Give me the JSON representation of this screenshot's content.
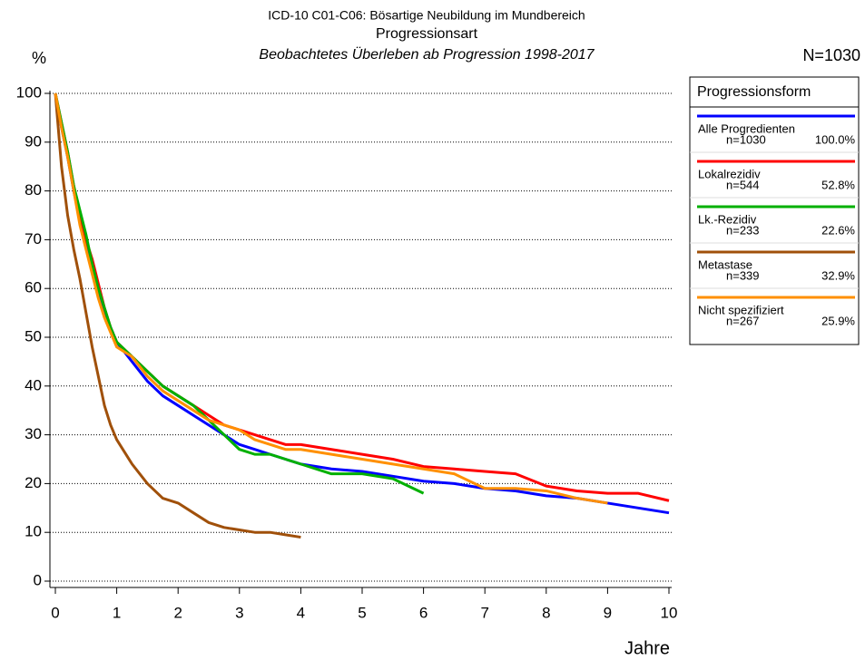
{
  "chart_data": {
    "type": "line",
    "title": "ICD-10 C01-C06: Bösartige Neubildung im Mundbereich",
    "subtitle": "Progressionsart",
    "subtitle2": "Beobachtetes Überleben ab Progression 1998-2017",
    "y_label": "%",
    "x_label": "Jahre",
    "total_label": "N=1030",
    "legend_title": "Progressionsform",
    "x": [
      0,
      0.1,
      0.2,
      0.3,
      0.4,
      0.5,
      0.6,
      0.7,
      0.8,
      0.9,
      1,
      1.25,
      1.5,
      1.75,
      2,
      2.25,
      2.5,
      2.75,
      3,
      3.25,
      3.5,
      3.75,
      4,
      4.5,
      5,
      5.5,
      6,
      6.5,
      7,
      7.5,
      8,
      8.5,
      9,
      9.5,
      10
    ],
    "series": [
      {
        "name": "Alle Progredienten",
        "n_label": "n=1030",
        "share_label": "100.0%",
        "color": "#0000ff",
        "values": [
          100,
          93,
          87,
          80,
          74,
          69,
          64,
          59,
          55,
          52,
          49,
          45,
          41,
          38,
          36,
          34,
          32,
          30,
          28,
          27,
          26,
          25,
          24,
          23,
          22.5,
          21.5,
          20.5,
          20,
          19,
          18.5,
          17.5,
          17,
          16,
          15,
          14
        ]
      },
      {
        "name": "Lokalrezidiv",
        "n_label": "n=544",
        "share_label": "52.8%",
        "color": "#ff0000",
        "values": [
          100,
          94,
          88,
          81,
          75,
          70,
          66,
          61,
          56,
          52,
          49,
          46,
          43,
          40,
          38,
          36,
          34,
          32,
          31,
          30,
          29,
          28,
          28,
          27,
          26,
          25,
          23.5,
          23,
          22.5,
          22,
          19.5,
          18.5,
          18,
          18,
          16.5
        ]
      },
      {
        "name": "Lk.-Rezidiv",
        "n_label": "n=233",
        "share_label": "22.6%",
        "color": "#00b000",
        "values": [
          100,
          94,
          88,
          81,
          76,
          71,
          65,
          60,
          56,
          52,
          49,
          46,
          43,
          40,
          38,
          36,
          33,
          30,
          27,
          26,
          26,
          25,
          24,
          22,
          22,
          21,
          18,
          null,
          null,
          null,
          null,
          null,
          null,
          null,
          null
        ]
      },
      {
        "name": "Metastase",
        "n_label": "n=339",
        "share_label": "32.9%",
        "color": "#a0500a",
        "values": [
          100,
          85,
          75,
          68,
          62,
          55,
          48,
          42,
          36,
          32,
          29,
          24,
          20,
          17,
          16,
          14,
          12,
          11,
          10.5,
          10,
          10,
          9.5,
          9,
          null,
          null,
          null,
          null,
          null,
          null,
          null,
          null,
          null,
          null,
          null,
          null
        ]
      },
      {
        "name": "Nicht spezifiziert",
        "n_label": "n=267",
        "share_label": "25.9%",
        "color": "#ff9000",
        "values": [
          100,
          93,
          87,
          80,
          73,
          68,
          63,
          58,
          54,
          51,
          48,
          46,
          42,
          39,
          37,
          35,
          33,
          32,
          31,
          29,
          28,
          27,
          27,
          26,
          25,
          24,
          23,
          22,
          19,
          19,
          18.5,
          17,
          16,
          null,
          null
        ]
      }
    ],
    "xlim": [
      0,
      10
    ],
    "xticks": [
      0,
      1,
      2,
      3,
      4,
      5,
      6,
      7,
      8,
      9,
      10
    ],
    "ylim": [
      0,
      100
    ],
    "yticks": [
      0,
      10,
      20,
      30,
      40,
      50,
      60,
      70,
      80,
      90,
      100
    ],
    "grid": true,
    "grid_bold": [
      50,
      100
    ],
    "legend": "right"
  }
}
